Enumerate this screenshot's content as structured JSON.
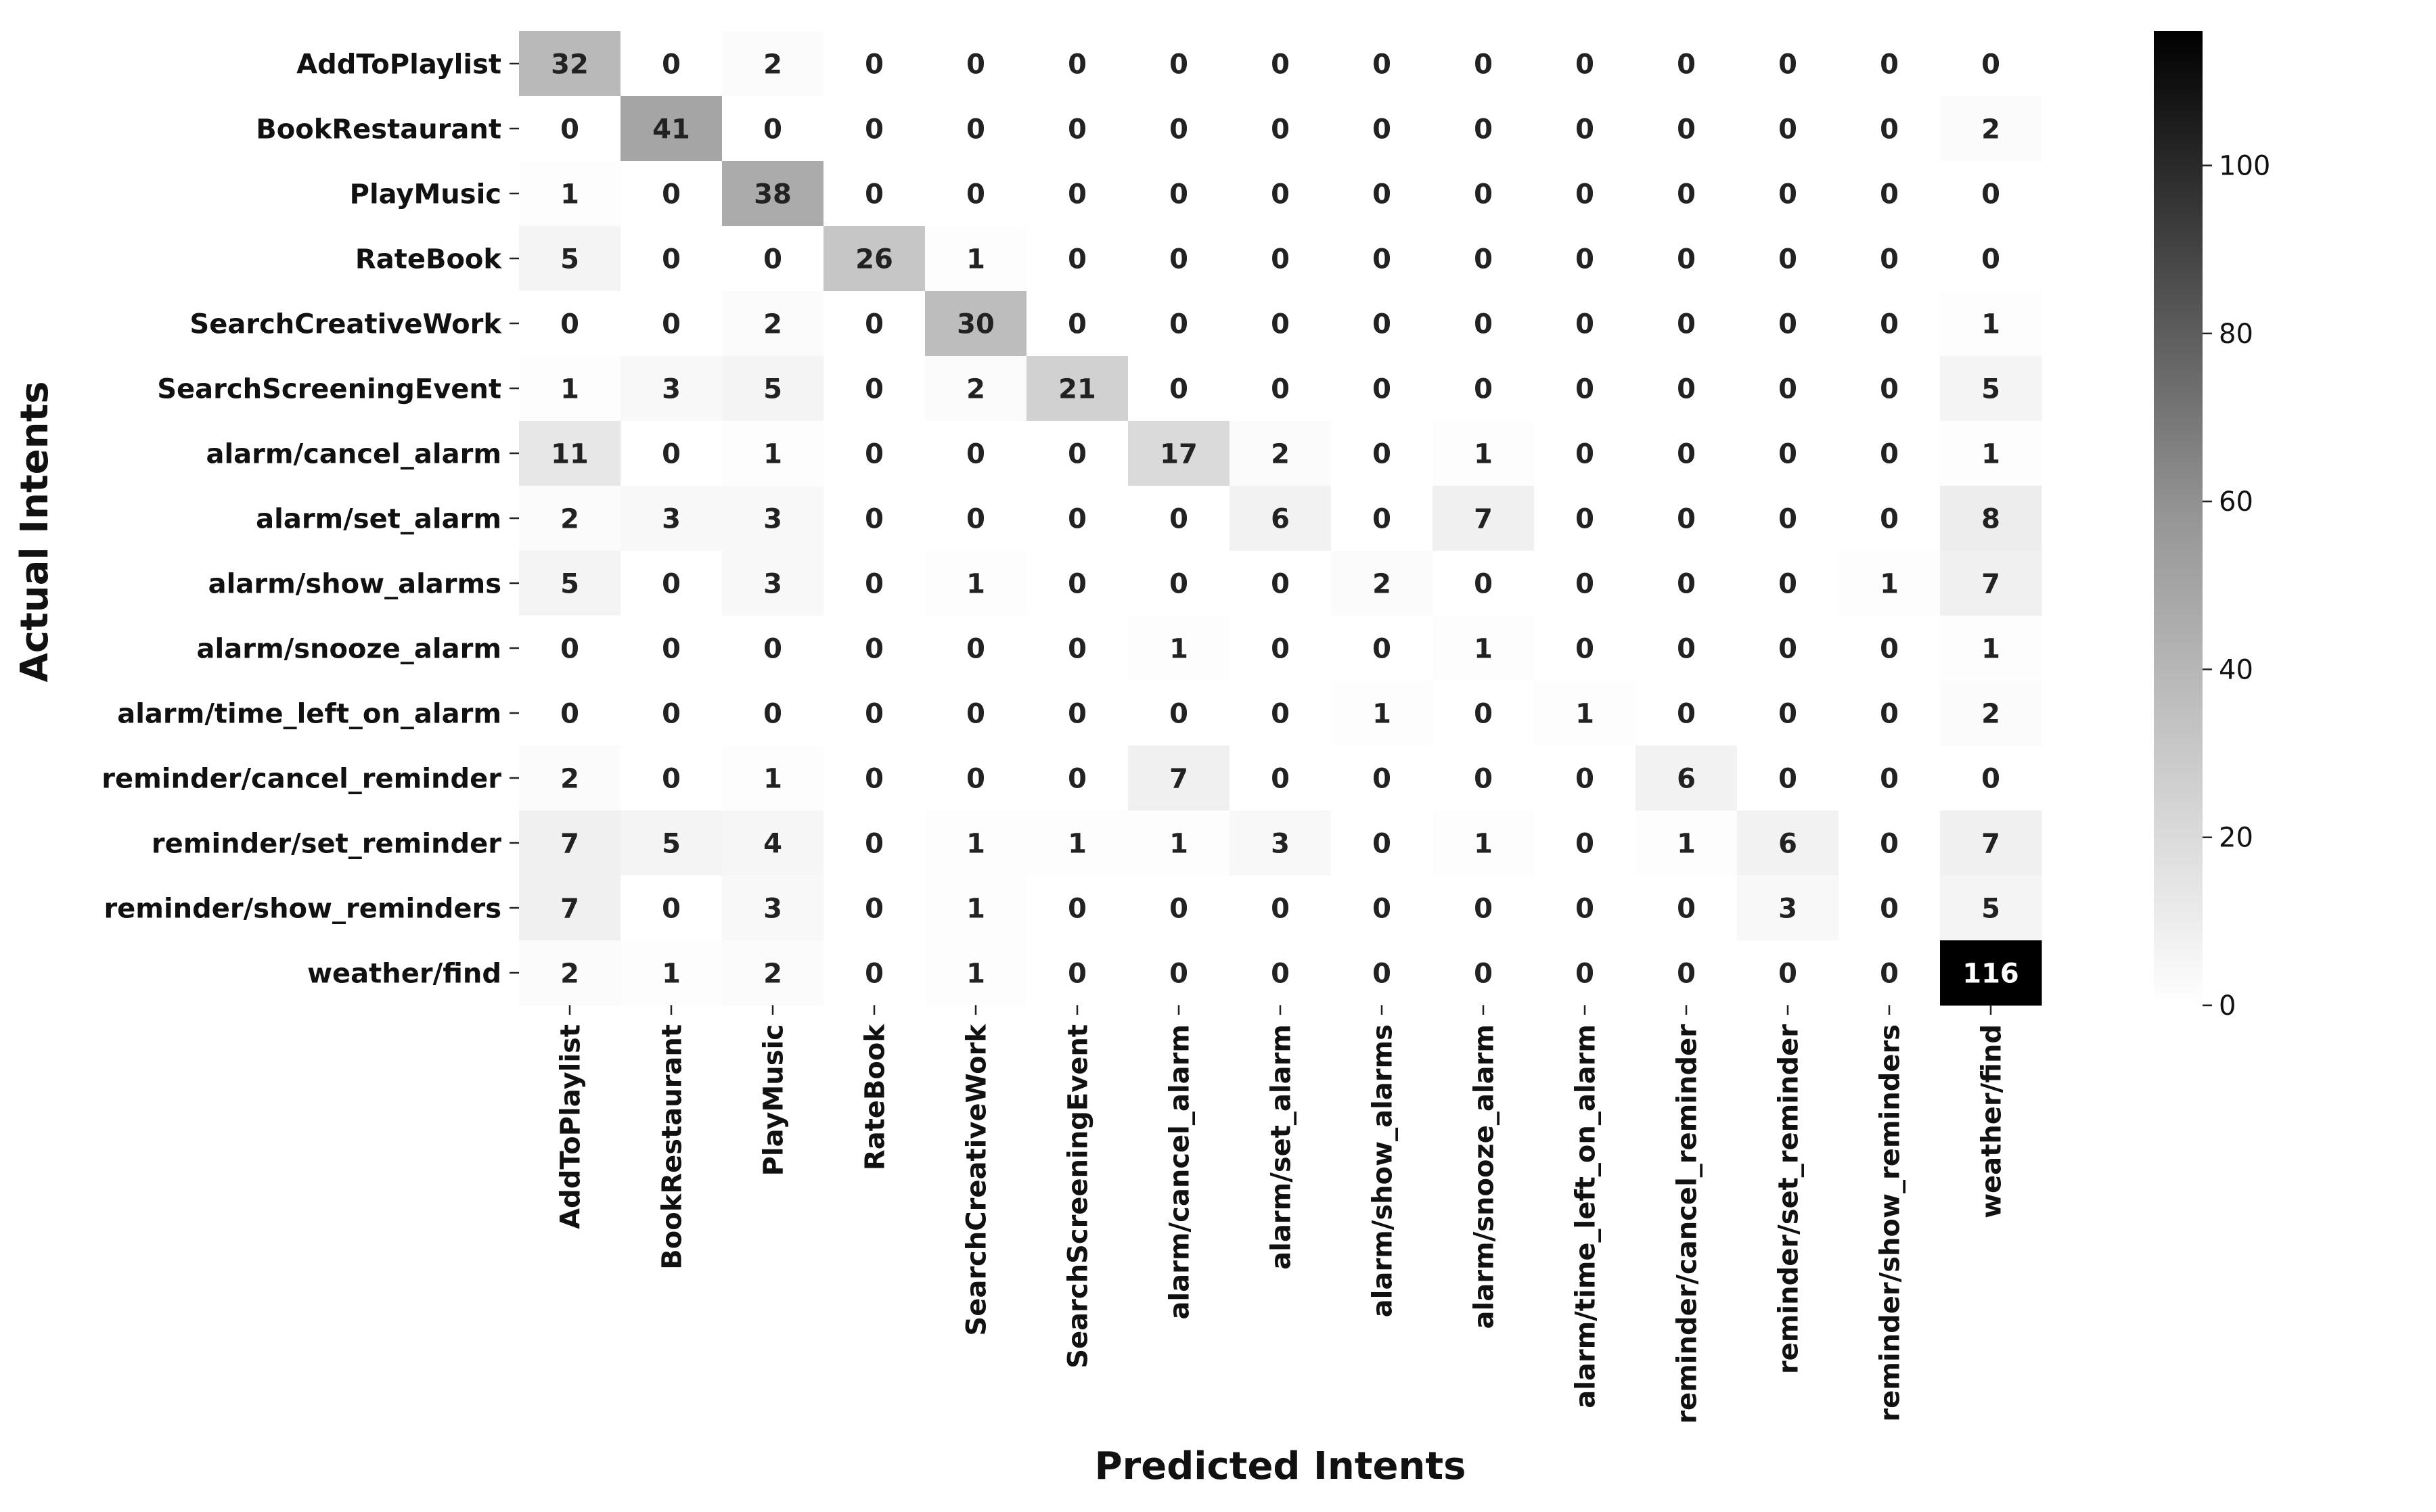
{
  "chart_data": {
    "type": "heatmap",
    "title": "",
    "xlabel": "Predicted Intents",
    "ylabel": "Actual Intents",
    "rows": [
      "AddToPlaylist",
      "BookRestaurant",
      "PlayMusic",
      "RateBook",
      "SearchCreativeWork",
      "SearchScreeningEvent",
      "alarm/cancel_alarm",
      "alarm/set_alarm",
      "alarm/show_alarms",
      "alarm/snooze_alarm",
      "alarm/time_left_on_alarm",
      "reminder/cancel_reminder",
      "reminder/set_reminder",
      "reminder/show_reminders",
      "weather/find"
    ],
    "columns": [
      "AddToPlaylist",
      "BookRestaurant",
      "PlayMusic",
      "RateBook",
      "SearchCreativeWork",
      "SearchScreeningEvent",
      "alarm/cancel_alarm",
      "alarm/set_alarm",
      "alarm/show_alarms",
      "alarm/snooze_alarm",
      "alarm/time_left_on_alarm",
      "reminder/cancel_reminder",
      "reminder/set_reminder",
      "reminder/show_reminders",
      "weather/find"
    ],
    "values": [
      [
        32,
        0,
        2,
        0,
        0,
        0,
        0,
        0,
        0,
        0,
        0,
        0,
        0,
        0,
        0
      ],
      [
        0,
        41,
        0,
        0,
        0,
        0,
        0,
        0,
        0,
        0,
        0,
        0,
        0,
        0,
        2
      ],
      [
        1,
        0,
        38,
        0,
        0,
        0,
        0,
        0,
        0,
        0,
        0,
        0,
        0,
        0,
        0
      ],
      [
        5,
        0,
        0,
        26,
        1,
        0,
        0,
        0,
        0,
        0,
        0,
        0,
        0,
        0,
        0
      ],
      [
        0,
        0,
        2,
        0,
        30,
        0,
        0,
        0,
        0,
        0,
        0,
        0,
        0,
        0,
        1
      ],
      [
        1,
        3,
        5,
        0,
        2,
        21,
        0,
        0,
        0,
        0,
        0,
        0,
        0,
        0,
        5
      ],
      [
        11,
        0,
        1,
        0,
        0,
        0,
        17,
        2,
        0,
        1,
        0,
        0,
        0,
        0,
        1
      ],
      [
        2,
        3,
        3,
        0,
        0,
        0,
        0,
        6,
        0,
        7,
        0,
        0,
        0,
        0,
        8
      ],
      [
        5,
        0,
        3,
        0,
        1,
        0,
        0,
        0,
        2,
        0,
        0,
        0,
        0,
        1,
        7
      ],
      [
        0,
        0,
        0,
        0,
        0,
        0,
        1,
        0,
        0,
        1,
        0,
        0,
        0,
        0,
        1
      ],
      [
        0,
        0,
        0,
        0,
        0,
        0,
        0,
        0,
        1,
        0,
        1,
        0,
        0,
        0,
        2
      ],
      [
        2,
        0,
        1,
        0,
        0,
        0,
        7,
        0,
        0,
        0,
        0,
        6,
        0,
        0,
        0
      ],
      [
        7,
        5,
        4,
        0,
        1,
        1,
        1,
        3,
        0,
        1,
        0,
        1,
        6,
        0,
        7
      ],
      [
        7,
        0,
        3,
        0,
        1,
        0,
        0,
        0,
        0,
        0,
        0,
        0,
        3,
        0,
        5
      ],
      [
        2,
        1,
        2,
        0,
        1,
        0,
        0,
        0,
        0,
        0,
        0,
        0,
        0,
        0,
        116
      ]
    ],
    "colormap": "Greys",
    "vmin": 0,
    "vmax": 116,
    "colorbar_ticks": [
      0,
      20,
      40,
      60,
      80,
      100
    ],
    "annotations": true,
    "legend": "colorbar-right"
  }
}
